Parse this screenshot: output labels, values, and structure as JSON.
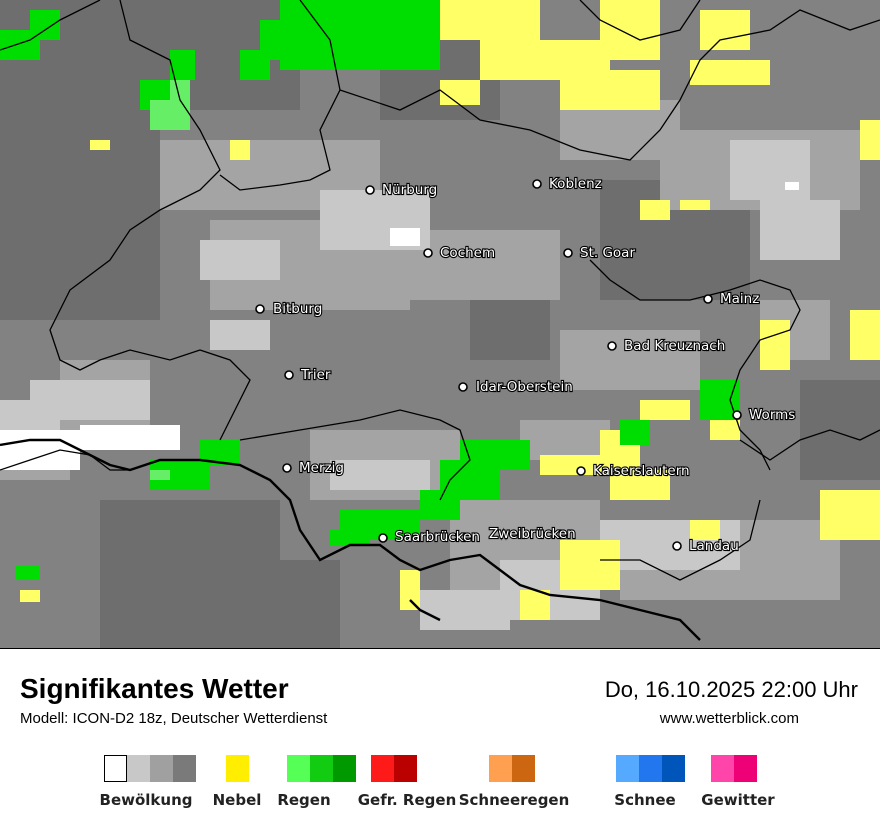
{
  "map": {
    "cities": [
      {
        "name": "Nürburg"
      },
      {
        "name": "Koblenz"
      },
      {
        "name": "Cochem"
      },
      {
        "name": "St. Goar"
      },
      {
        "name": "Mainz"
      },
      {
        "name": "Bitburg"
      },
      {
        "name": "Bad Kreuznach"
      },
      {
        "name": "Trier"
      },
      {
        "name": "Idar-Oberstein"
      },
      {
        "name": "Worms"
      },
      {
        "name": "Merzig"
      },
      {
        "name": "Kaiserslautern"
      },
      {
        "name": "Saarbrücken"
      },
      {
        "name": "Zweibrücken"
      },
      {
        "name": "Landau"
      }
    ],
    "colors": {
      "cloud_light": "#c8c8c8",
      "cloud_mid": "#a4a4a4",
      "cloud_dark": "#828282",
      "cloud_darker": "#6e6e6e",
      "fog": "#ffff66",
      "rain": "#00dd00",
      "rain_light": "#66ee66",
      "border": "#000000"
    }
  },
  "header": {
    "title": "Signifikantes Wetter",
    "subtitle": "Modell: ICON-D2 18z, Deutscher Wetterdienst",
    "datetime": "Do, 16.10.2025 22:00 Uhr",
    "website": "www.wetterblick.com"
  },
  "legend": [
    {
      "label": "Bewölkung",
      "colors": [
        "#ffffff",
        "#c8c8c8",
        "#a0a0a0",
        "#7a7a7a"
      ]
    },
    {
      "label": "Nebel",
      "colors": [
        "#ffee00"
      ]
    },
    {
      "label": "Regen",
      "colors": [
        "#55ff55",
        "#11cc11",
        "#009900"
      ]
    },
    {
      "label": "Gefr. Regen",
      "colors": [
        "#ff1a1a",
        "#bb0000"
      ]
    },
    {
      "label": "Schneeregen",
      "colors": [
        "#ffa050",
        "#cc6611"
      ]
    },
    {
      "label": "Schnee",
      "colors": [
        "#55aaff",
        "#2277ee",
        "#0055bb"
      ]
    },
    {
      "label": "Gewitter",
      "colors": [
        "#ff44aa",
        "#ee0077"
      ]
    }
  ]
}
